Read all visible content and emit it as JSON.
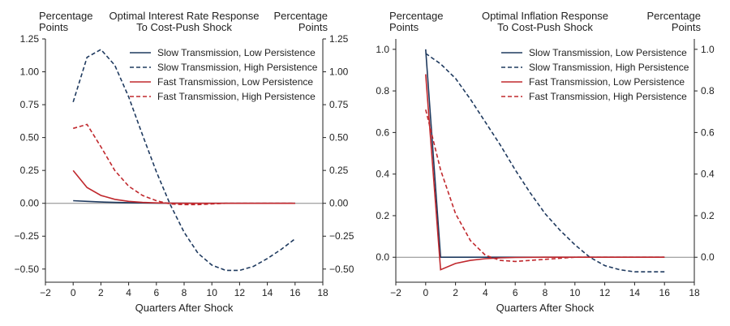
{
  "chart_data": [
    {
      "type": "line",
      "title_lines": [
        "Optimal Interest Rate Response",
        "To Cost-Push Shock"
      ],
      "left_unit_lines": [
        "Percentage",
        "Points"
      ],
      "right_unit_lines": [
        "Percentage",
        "Points"
      ],
      "xlabel": "Quarters After Shock",
      "xlim": [
        -2,
        18
      ],
      "ylim": [
        -0.6,
        1.25
      ],
      "xticks": [
        -2,
        0,
        2,
        4,
        6,
        8,
        10,
        12,
        14,
        16,
        18
      ],
      "yticks": [
        -0.5,
        -0.25,
        0,
        0.25,
        0.5,
        0.75,
        1.0,
        1.25
      ],
      "ytick_labels": [
        "-0.50",
        "-0.25",
        "0.00",
        "0.25",
        "0.50",
        "0.75",
        "1.00",
        "1.25"
      ],
      "legend_position": "top-right",
      "series": [
        {
          "name": "Slow Transmission, Low Persistence",
          "color": "#1f3a5f",
          "dash": "solid",
          "x": [
            0,
            1,
            2,
            3,
            4,
            5,
            6,
            7,
            8,
            9,
            10,
            11,
            12,
            13,
            14,
            15,
            16
          ],
          "y": [
            0.02,
            0.015,
            0.01,
            0.007,
            0.005,
            0.003,
            0.002,
            0.001,
            0.001,
            0,
            0,
            0,
            0,
            0,
            0,
            0,
            0
          ]
        },
        {
          "name": "Slow Transmission, High Persistence",
          "color": "#1f3a5f",
          "dash": "dashed",
          "x": [
            0,
            1,
            2,
            3,
            4,
            5,
            6,
            7,
            8,
            9,
            10,
            11,
            12,
            13,
            14,
            15,
            16
          ],
          "y": [
            0.77,
            1.11,
            1.17,
            1.05,
            0.81,
            0.52,
            0.24,
            -0.01,
            -0.22,
            -0.38,
            -0.47,
            -0.51,
            -0.51,
            -0.48,
            -0.42,
            -0.35,
            -0.27
          ]
        },
        {
          "name": "Fast Transmission, Low Persistence",
          "color": "#c0282d",
          "dash": "solid",
          "x": [
            0,
            1,
            2,
            3,
            4,
            5,
            6,
            7,
            8,
            9,
            10,
            11,
            12,
            13,
            14,
            15,
            16
          ],
          "y": [
            0.25,
            0.12,
            0.06,
            0.03,
            0.015,
            0.007,
            0.003,
            0.001,
            0,
            0,
            0,
            0,
            0,
            0,
            0,
            0,
            0
          ]
        },
        {
          "name": "Fast Transmission, High Persistence",
          "color": "#c0282d",
          "dash": "dashed",
          "x": [
            0,
            1,
            2,
            3,
            4,
            5,
            6,
            7,
            8,
            9,
            10,
            11,
            12,
            13,
            14,
            15,
            16
          ],
          "y": [
            0.57,
            0.6,
            0.43,
            0.25,
            0.13,
            0.06,
            0.02,
            -0.005,
            -0.01,
            -0.01,
            -0.005,
            0,
            0,
            0,
            0,
            0,
            0
          ]
        }
      ]
    },
    {
      "type": "line",
      "title_lines": [
        "Optimal Inflation Response",
        "To Cost-Push Shock"
      ],
      "left_unit_lines": [
        "Percentage",
        "Points"
      ],
      "right_unit_lines": [
        "Percentage",
        "Points"
      ],
      "xlabel": "Quarters After Shock",
      "xlim": [
        -2,
        18
      ],
      "ylim": [
        -0.12,
        1.05
      ],
      "xticks": [
        -2,
        0,
        2,
        4,
        6,
        8,
        10,
        12,
        14,
        16,
        18
      ],
      "yticks": [
        0,
        0.2,
        0.4,
        0.6,
        0.8,
        1.0
      ],
      "ytick_labels": [
        "0.0",
        "0.2",
        "0.4",
        "0.6",
        "0.8",
        "1.0"
      ],
      "legend_position": "top-right",
      "series": [
        {
          "name": "Slow Transmission, Low Persistence",
          "color": "#1f3a5f",
          "dash": "solid",
          "x": [
            0,
            1,
            2,
            4,
            6,
            8,
            10,
            12,
            14,
            16
          ],
          "y": [
            1.0,
            0,
            0,
            0,
            0,
            0,
            0,
            0,
            0,
            0
          ]
        },
        {
          "name": "Slow Transmission, High Persistence",
          "color": "#1f3a5f",
          "dash": "dashed",
          "x": [
            0,
            1,
            2,
            3,
            4,
            5,
            6,
            7,
            8,
            9,
            10,
            11,
            12,
            13,
            14,
            15,
            16
          ],
          "y": [
            0.98,
            0.93,
            0.86,
            0.76,
            0.65,
            0.54,
            0.42,
            0.31,
            0.21,
            0.13,
            0.06,
            0,
            -0.04,
            -0.06,
            -0.07,
            -0.07,
            -0.07
          ]
        },
        {
          "name": "Fast Transmission, Low Persistence",
          "color": "#c0282d",
          "dash": "solid",
          "x": [
            0,
            1,
            2,
            3,
            4,
            5,
            6,
            8,
            10,
            12,
            14,
            16
          ],
          "y": [
            0.88,
            -0.06,
            -0.03,
            -0.015,
            -0.007,
            -0.003,
            -0.001,
            0,
            0,
            0,
            0,
            0
          ]
        },
        {
          "name": "Fast Transmission, High Persistence",
          "color": "#c0282d",
          "dash": "dashed",
          "x": [
            0,
            1,
            2,
            3,
            4,
            5,
            6,
            7,
            8,
            9,
            10,
            11,
            12,
            13,
            14,
            15,
            16
          ],
          "y": [
            0.71,
            0.42,
            0.21,
            0.08,
            0.01,
            -0.015,
            -0.02,
            -0.015,
            -0.01,
            -0.005,
            0,
            0,
            0,
            0,
            0,
            0,
            0
          ]
        }
      ]
    }
  ]
}
